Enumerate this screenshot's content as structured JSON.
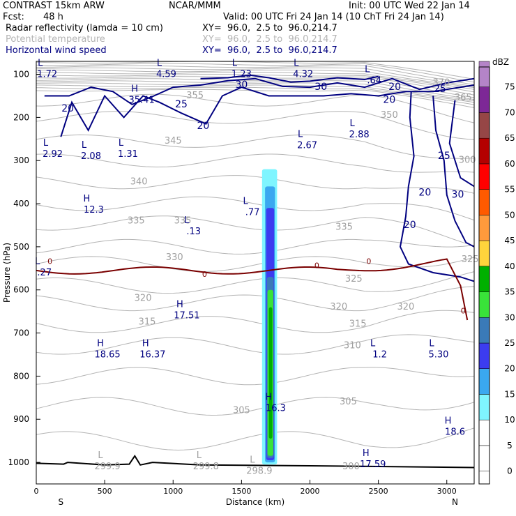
{
  "header": {
    "model": "CONTRAST 15km ARW",
    "center": "NCAR/MMM",
    "init": "Init: 00 UTC Wed 22 Jan 14",
    "fcst_label": "Fcst:",
    "fcst_value": "48 h",
    "valid": "Valid: 00 UTC Fri 24 Jan 14 (10 ChT Fri 24 Jan 14)",
    "fields": [
      {
        "name": "Radar reflectivity (lamda = 10 cm)",
        "xy": "XY=  96.0,  2.5 to  96.0,214.7"
      },
      {
        "name": "Potential temperature",
        "xy": "XY=  96.0,  2.5 to  96.0,214.7"
      },
      {
        "name": "Horizontal wind speed",
        "xy": "XY=  96.0,  2.5 to  96.0,214.7"
      }
    ]
  },
  "chart_data": {
    "type": "heatmap",
    "title": "Cross section: Radar reflectivity, Potential temperature, Horizontal wind speed",
    "xlabel": "Distance (km)",
    "ylabel": "Pressure (hPa)",
    "xlim": [
      0,
      3200
    ],
    "ylim": [
      1050,
      70
    ],
    "x_ticks": [
      "0",
      "500",
      "1000",
      "1500",
      "2000",
      "2500",
      "3000"
    ],
    "y_ticks": [
      "100",
      "200",
      "300",
      "400",
      "500",
      "600",
      "700",
      "800",
      "900",
      "1000"
    ],
    "endpoints": {
      "left": "S",
      "right": "N"
    },
    "colorbar": {
      "unit": "dBZ",
      "levels": [
        "0",
        "5",
        "10",
        "15",
        "20",
        "25",
        "30",
        "35",
        "40",
        "45",
        "50",
        "55",
        "60",
        "65",
        "70",
        "75"
      ],
      "colors": [
        "#ffffff",
        "#ffffff",
        "#7ff5ff",
        "#3aa8f0",
        "#3c3cf0",
        "#3a7ab8",
        "#39e339",
        "#00b000",
        "#ffd43c",
        "#ff9a3c",
        "#ff5a00",
        "#ff0000",
        "#b40000",
        "#964646",
        "#7d2896",
        "#b484c8"
      ]
    },
    "theta_labels": [
      {
        "text": "370",
        "x": 2960,
        "p": 120
      },
      {
        "text": "365",
        "x": 3120,
        "p": 155
      },
      {
        "text": "350",
        "x": 2580,
        "p": 195
      },
      {
        "text": "355",
        "x": 1160,
        "p": 150
      },
      {
        "text": "345",
        "x": 1000,
        "p": 255
      },
      {
        "text": "340",
        "x": 750,
        "p": 350
      },
      {
        "text": "335",
        "x": 730,
        "p": 440
      },
      {
        "text": "335",
        "x": 1070,
        "p": 440
      },
      {
        "text": "335",
        "x": 2250,
        "p": 455
      },
      {
        "text": "330",
        "x": 1010,
        "p": 525
      },
      {
        "text": "325",
        "x": 2320,
        "p": 575
      },
      {
        "text": "325",
        "x": 3170,
        "p": 530
      },
      {
        "text": "320",
        "x": 780,
        "p": 620
      },
      {
        "text": "320",
        "x": 2210,
        "p": 640
      },
      {
        "text": "320",
        "x": 2700,
        "p": 640
      },
      {
        "text": "315",
        "x": 810,
        "p": 675
      },
      {
        "text": "315",
        "x": 2350,
        "p": 680
      },
      {
        "text": "310",
        "x": 2310,
        "p": 730
      },
      {
        "text": "305",
        "x": 1500,
        "p": 880
      },
      {
        "text": "305",
        "x": 2280,
        "p": 860
      },
      {
        "text": "300",
        "x": 2300,
        "p": 1010
      },
      {
        "text": "300",
        "x": 3150,
        "p": 300
      }
    ],
    "wind_labels": [
      {
        "text": "20",
        "x": 230,
        "p": 180
      },
      {
        "text": "25",
        "x": 1060,
        "p": 170
      },
      {
        "text": "30",
        "x": 1500,
        "p": 125
      },
      {
        "text": "30",
        "x": 2080,
        "p": 130
      },
      {
        "text": "20",
        "x": 1220,
        "p": 220
      },
      {
        "text": "20",
        "x": 2620,
        "p": 130
      },
      {
        "text": "25",
        "x": 2950,
        "p": 135
      },
      {
        "text": "20",
        "x": 2580,
        "p": 160
      },
      {
        "text": "25",
        "x": 2980,
        "p": 290
      },
      {
        "text": "20",
        "x": 2840,
        "p": 375
      },
      {
        "text": "30",
        "x": 3080,
        "p": 380
      },
      {
        "text": "20",
        "x": 2730,
        "p": 450
      }
    ],
    "zero_labels": [
      {
        "text": "0",
        "x": 100,
        "p": 535
      },
      {
        "text": "0",
        "x": 1230,
        "p": 565
      },
      {
        "text": "0",
        "x": 2050,
        "p": 545
      },
      {
        "text": "0",
        "x": 2430,
        "p": 535
      },
      {
        "text": "0",
        "x": 3120,
        "p": 650
      }
    ],
    "pressure_centers": [
      {
        "type": "L",
        "value": "1.72",
        "x": 80,
        "p": 95
      },
      {
        "type": "L",
        "value": "4.59",
        "x": 950,
        "p": 95
      },
      {
        "type": "L",
        "value": "1.23",
        "x": 1500,
        "p": 95
      },
      {
        "type": "L",
        "value": "4.32",
        "x": 1950,
        "p": 95
      },
      {
        "type": "L",
        "value": ".64",
        "x": 2470,
        "p": 110
      },
      {
        "type": "H",
        "value": "35.41",
        "x": 770,
        "p": 155
      },
      {
        "type": "L",
        "value": "2.92",
        "x": 120,
        "p": 280
      },
      {
        "type": "L",
        "value": "2.08",
        "x": 400,
        "p": 285
      },
      {
        "type": "L",
        "value": "1.31",
        "x": 670,
        "p": 280
      },
      {
        "type": "L",
        "value": "2.67",
        "x": 1980,
        "p": 260
      },
      {
        "type": "L",
        "value": "2.88",
        "x": 2360,
        "p": 235
      },
      {
        "type": "H",
        "value": "12.3",
        "x": 420,
        "p": 410
      },
      {
        "type": "L",
        "value": ".13",
        "x": 1150,
        "p": 460
      },
      {
        "type": "L",
        "value": ".77",
        "x": 1580,
        "p": 415
      },
      {
        "type": "L",
        "value": ".27",
        "x": 60,
        "p": 555
      },
      {
        "type": "H",
        "value": "17.51",
        "x": 1100,
        "p": 655
      },
      {
        "type": "H",
        "value": "18.65",
        "x": 520,
        "p": 745
      },
      {
        "type": "H",
        "value": "16.37",
        "x": 850,
        "p": 745
      },
      {
        "type": "L",
        "value": "1.2",
        "x": 2510,
        "p": 745
      },
      {
        "type": "L",
        "value": "5.30",
        "x": 2940,
        "p": 745
      },
      {
        "type": "H",
        "value": "16.3",
        "x": 1750,
        "p": 870
      },
      {
        "type": "H",
        "value": "18.6",
        "x": 3060,
        "p": 925
      },
      {
        "type": "L",
        "value": "299.9",
        "x": 520,
        "p": 1005
      },
      {
        "type": "L",
        "value": "299.8",
        "x": 1240,
        "p": 1005
      },
      {
        "type": "L",
        "value": "298.9",
        "x": 1630,
        "p": 1015
      },
      {
        "type": "H",
        "value": "17.59",
        "x": 2460,
        "p": 1000
      }
    ],
    "reflectivity_column": {
      "x_range": [
        1650,
        1760
      ],
      "p_range": [
        320,
        1005
      ],
      "max_dbz_approx": 30
    },
    "freezing_level_p": 555
  }
}
